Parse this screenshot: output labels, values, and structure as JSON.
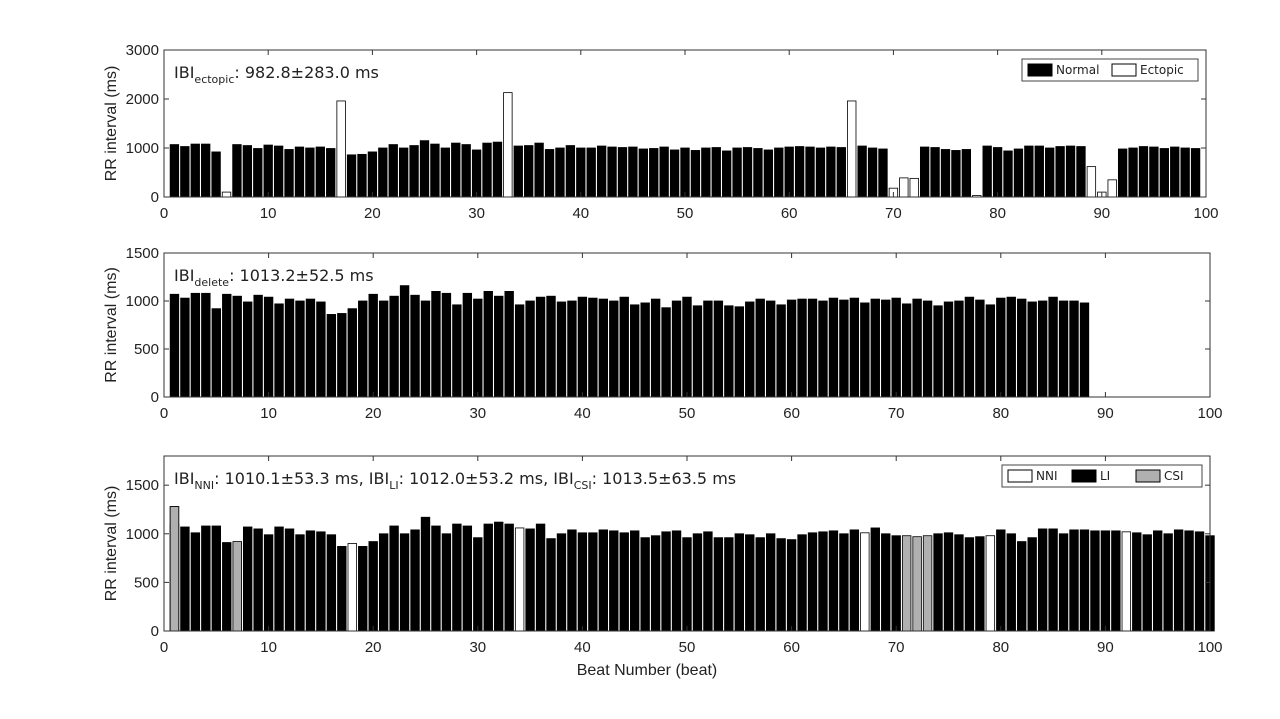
{
  "chart_data": [
    {
      "type": "bar",
      "ylabel": "RR interval (ms)",
      "xlim": [
        0,
        100
      ],
      "ylim": [
        0,
        3000
      ],
      "yticks": [
        0,
        1000,
        2000,
        3000
      ],
      "xticks": [
        0,
        10,
        20,
        30,
        40,
        50,
        60,
        70,
        80,
        90,
        100
      ],
      "annotation": {
        "base": "IBI",
        "sub": "ectopic",
        "text": ": 982.8±283.0 ms"
      },
      "legend": {
        "placement": "top-right",
        "entries": [
          {
            "label": "Normal",
            "color": "#000000"
          },
          {
            "label": "Ectopic",
            "color": "#ffffff"
          }
        ]
      },
      "bar_width": 0.82,
      "series": [
        {
          "name": "Normal",
          "x": [
            1,
            2,
            3,
            4,
            5,
            7,
            8,
            9,
            10,
            11,
            12,
            13,
            14,
            15,
            16,
            18,
            19,
            20,
            21,
            22,
            23,
            24,
            25,
            26,
            27,
            28,
            29,
            30,
            31,
            32,
            34,
            35,
            36,
            37,
            38,
            39,
            40,
            41,
            42,
            43,
            44,
            45,
            46,
            47,
            48,
            49,
            50,
            51,
            52,
            53,
            54,
            55,
            56,
            57,
            58,
            59,
            60,
            61,
            62,
            63,
            64,
            65,
            67,
            68,
            69,
            73,
            74,
            75,
            76,
            77,
            79,
            80,
            81,
            82,
            83,
            84,
            85,
            86,
            87,
            88,
            92,
            93,
            94,
            95,
            96,
            97,
            98,
            99
          ],
          "values": [
            1070,
            1030,
            1080,
            1080,
            920,
            1070,
            1050,
            990,
            1060,
            1040,
            970,
            1020,
            1000,
            1020,
            990,
            860,
            870,
            920,
            1000,
            1070,
            1000,
            1050,
            1150,
            1080,
            1000,
            1100,
            1070,
            960,
            1100,
            1120,
            1040,
            1050,
            1100,
            970,
            1000,
            1050,
            1000,
            1000,
            1040,
            1020,
            1010,
            1020,
            980,
            990,
            1020,
            960,
            1000,
            950,
            1000,
            1010,
            940,
            1000,
            1010,
            990,
            960,
            1000,
            1020,
            1030,
            1020,
            1000,
            1020,
            1010,
            1040,
            1000,
            980,
            1020,
            1010,
            970,
            950,
            970,
            1040,
            1010,
            940,
            980,
            1040,
            1040,
            1000,
            1030,
            1040,
            1030,
            980,
            1000,
            1030,
            1020,
            990,
            1020,
            1000,
            990
          ]
        },
        {
          "name": "Ectopic",
          "x": [
            6,
            17,
            33,
            66,
            70,
            71,
            72,
            78,
            89,
            90,
            91
          ],
          "values": [
            100,
            1960,
            2130,
            1960,
            180,
            390,
            380,
            30,
            620,
            100,
            350
          ]
        }
      ]
    },
    {
      "type": "bar",
      "ylabel": "RR interval (ms)",
      "xlim": [
        0,
        100
      ],
      "ylim": [
        0,
        1500
      ],
      "yticks": [
        0,
        500,
        1000,
        1500
      ],
      "xticks": [
        0,
        10,
        20,
        30,
        40,
        50,
        60,
        70,
        80,
        90,
        100
      ],
      "annotation": {
        "base": "IBI",
        "sub": "delete",
        "text": ": 1013.2±52.5 ms"
      },
      "bar_width": 0.82,
      "series": [
        {
          "name": "RR",
          "x": [
            1,
            2,
            3,
            4,
            5,
            6,
            7,
            8,
            9,
            10,
            11,
            12,
            13,
            14,
            15,
            16,
            17,
            18,
            19,
            20,
            21,
            22,
            23,
            24,
            25,
            26,
            27,
            28,
            29,
            30,
            31,
            32,
            33,
            34,
            35,
            36,
            37,
            38,
            39,
            40,
            41,
            42,
            43,
            44,
            45,
            46,
            47,
            48,
            49,
            50,
            51,
            52,
            53,
            54,
            55,
            56,
            57,
            58,
            59,
            60,
            61,
            62,
            63,
            64,
            65,
            66,
            67,
            68,
            69,
            70,
            71,
            72,
            73,
            74,
            75,
            76,
            77,
            78,
            79,
            80,
            81,
            82,
            83,
            84,
            85,
            86,
            87,
            88
          ],
          "values": [
            1070,
            1030,
            1080,
            1080,
            920,
            1070,
            1050,
            990,
            1060,
            1040,
            970,
            1020,
            1000,
            1020,
            990,
            860,
            870,
            920,
            1000,
            1070,
            1000,
            1050,
            1160,
            1060,
            1000,
            1100,
            1080,
            960,
            1080,
            1020,
            1100,
            1050,
            1100,
            960,
            1000,
            1040,
            1050,
            990,
            1000,
            1040,
            1030,
            1020,
            1000,
            1040,
            960,
            980,
            1020,
            930,
            1000,
            1040,
            950,
            1000,
            1000,
            950,
            940,
            990,
            1020,
            1000,
            960,
            1010,
            1020,
            1020,
            1000,
            1030,
            1010,
            1030,
            980,
            1020,
            1010,
            1030,
            970,
            1020,
            1000,
            950,
            990,
            1000,
            1040,
            1010,
            960,
            1030,
            1040,
            1020,
            990,
            1000,
            1040,
            1000,
            1000,
            980
          ]
        }
      ]
    },
    {
      "type": "bar",
      "xlabel": "Beat Number (beat)",
      "ylabel": "RR interval (ms)",
      "xlim": [
        0,
        100
      ],
      "ylim": [
        0,
        1800
      ],
      "yticks": [
        0,
        500,
        1000,
        1500
      ],
      "xticks": [
        0,
        10,
        20,
        30,
        40,
        50,
        60,
        70,
        80,
        90,
        100
      ],
      "annotation": [
        {
          "base": "IBI",
          "sub": "NNI",
          "text": ": 1010.1±53.3 ms, "
        },
        {
          "base": "IBI",
          "sub": "LI",
          "text": ": 1012.0±53.2 ms, "
        },
        {
          "base": "IBI",
          "sub": "CSI",
          "text": ": 1013.5±63.5 ms"
        }
      ],
      "legend": {
        "placement": "top-right",
        "entries": [
          {
            "label": "NNI",
            "color": "#ffffff"
          },
          {
            "label": "LI",
            "color": "#000000"
          },
          {
            "label": "CSI",
            "color": "#b0b0b0"
          }
        ]
      },
      "bar_width": 0.82,
      "series": [
        {
          "name": "NNI",
          "x": [
            1,
            7,
            18,
            34,
            67,
            79,
            92
          ],
          "values": [
            1280,
            910,
            900,
            1060,
            1010,
            980,
            1020
          ]
        },
        {
          "name": "LI",
          "x": [
            1,
            2,
            3,
            4,
            5,
            6,
            8,
            9,
            10,
            11,
            12,
            13,
            14,
            15,
            16,
            17,
            19,
            20,
            21,
            22,
            23,
            24,
            25,
            26,
            27,
            28,
            29,
            30,
            31,
            32,
            33,
            35,
            36,
            37,
            38,
            39,
            40,
            41,
            42,
            43,
            44,
            45,
            46,
            47,
            48,
            49,
            50,
            51,
            52,
            53,
            54,
            55,
            56,
            57,
            58,
            59,
            60,
            61,
            62,
            63,
            64,
            65,
            66,
            68,
            69,
            70,
            74,
            75,
            76,
            77,
            78,
            80,
            81,
            82,
            83,
            84,
            85,
            86,
            87,
            88,
            89,
            90,
            91,
            93,
            94,
            95,
            96,
            97,
            98,
            99,
            100
          ],
          "values": [
            1100,
            1070,
            1010,
            1080,
            1080,
            910,
            1070,
            1050,
            990,
            1070,
            1050,
            990,
            1030,
            1020,
            990,
            870,
            870,
            920,
            1000,
            1080,
            1000,
            1040,
            1170,
            1080,
            1000,
            1100,
            1080,
            960,
            1100,
            1120,
            1100,
            1050,
            1100,
            950,
            1000,
            1040,
            1010,
            1010,
            1040,
            1030,
            1010,
            1030,
            960,
            980,
            1020,
            1030,
            960,
            1000,
            1020,
            960,
            960,
            1000,
            990,
            960,
            1000,
            950,
            940,
            990,
            1010,
            1020,
            1030,
            1000,
            1040,
            1060,
            1000,
            980,
            1000,
            1010,
            990,
            960,
            970,
            1040,
            1000,
            920,
            960,
            1050,
            1050,
            1000,
            1040,
            1040,
            1030,
            1030,
            1030,
            1010,
            990,
            1030,
            1000,
            1040,
            1030,
            1020,
            980
          ]
        },
        {
          "name": "CSI",
          "x": [
            1,
            7,
            71,
            72,
            73
          ],
          "values": [
            1280,
            920,
            980,
            970,
            980
          ]
        }
      ]
    }
  ]
}
